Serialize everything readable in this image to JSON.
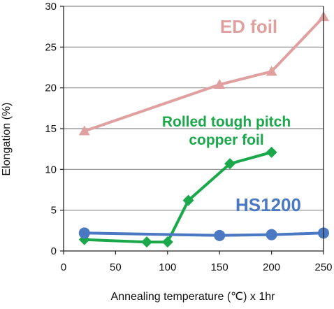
{
  "chart_data": {
    "type": "line",
    "xlabel": "Annealing temperature (℃) x 1hr",
    "ylabel": "Elongation (%)",
    "xlim": [
      0,
      250
    ],
    "ylim": [
      0,
      30
    ],
    "x_ticks": [
      "0",
      "50",
      "100",
      "150",
      "200",
      "250"
    ],
    "y_ticks": [
      "0",
      "5",
      "10",
      "15",
      "20",
      "25",
      "30"
    ],
    "grid": "horizontal",
    "series": [
      {
        "name": "ED foil",
        "color": "#e0a0a0",
        "marker": "triangle",
        "points": [
          [
            20,
            14.7
          ],
          [
            150,
            20.4
          ],
          [
            200,
            22.0
          ],
          [
            250,
            28.7
          ]
        ]
      },
      {
        "name": "Rolled tough pitch copper foil",
        "label_lines": [
          "Rolled tough pitch",
          "copper foil"
        ],
        "color": "#1aa84a",
        "marker": "diamond",
        "points": [
          [
            20,
            1.4
          ],
          [
            80,
            1.1
          ],
          [
            100,
            1.1
          ],
          [
            120,
            6.2
          ],
          [
            160,
            10.7
          ],
          [
            200,
            12.1
          ]
        ]
      },
      {
        "name": "HS1200",
        "color": "#4a78c2",
        "marker": "circle",
        "points": [
          [
            20,
            2.2
          ],
          [
            150,
            1.9
          ],
          [
            200,
            2.0
          ],
          [
            250,
            2.2
          ]
        ]
      }
    ]
  }
}
